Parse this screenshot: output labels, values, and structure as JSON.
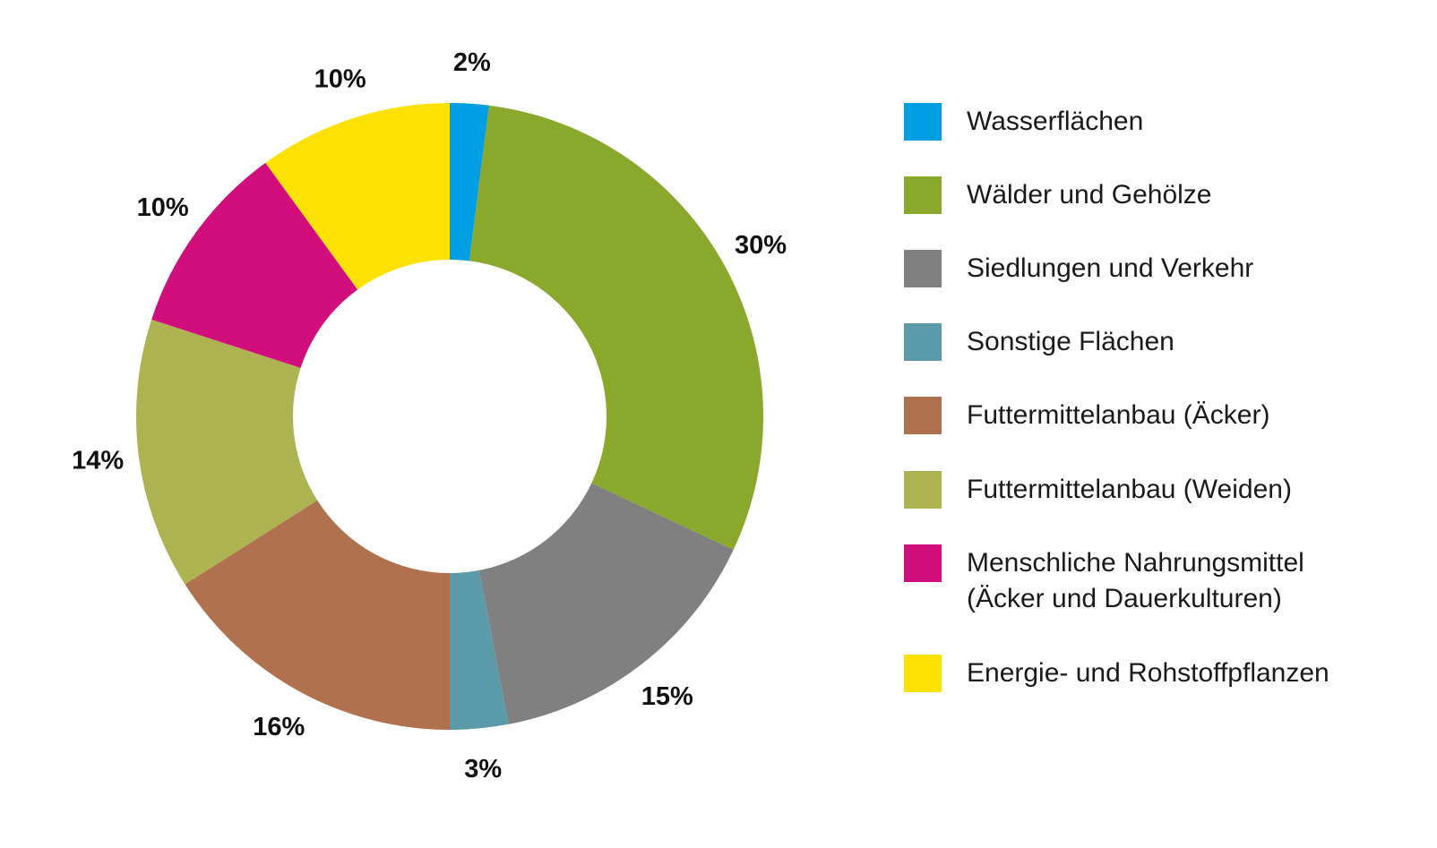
{
  "chart_data": {
    "type": "pie",
    "donut": true,
    "legend_position": "right",
    "categories": [
      "Wasserflächen",
      "Wälder und Gehölze",
      "Siedlungen und Verkehr",
      "Sonstige Flächen",
      "Futtermittelanbau (Äcker)",
      "Futtermittelanbau (Weiden)",
      "Menschliche Nahrungsmittel\n(Äcker und Dauerkulturen)",
      "Energie- und Rohstoffpflanzen"
    ],
    "values": [
      2,
      30,
      15,
      3,
      16,
      14,
      10,
      10
    ],
    "value_labels": [
      "2%",
      "30%",
      "15%",
      "3%",
      "16%",
      "14%",
      "10%",
      "10%"
    ],
    "colors": [
      "#009fe3",
      "#89a82c",
      "#808080",
      "#5b9aa8",
      "#b0714e",
      "#adb350",
      "#d20d7c",
      "#fde100"
    ]
  }
}
